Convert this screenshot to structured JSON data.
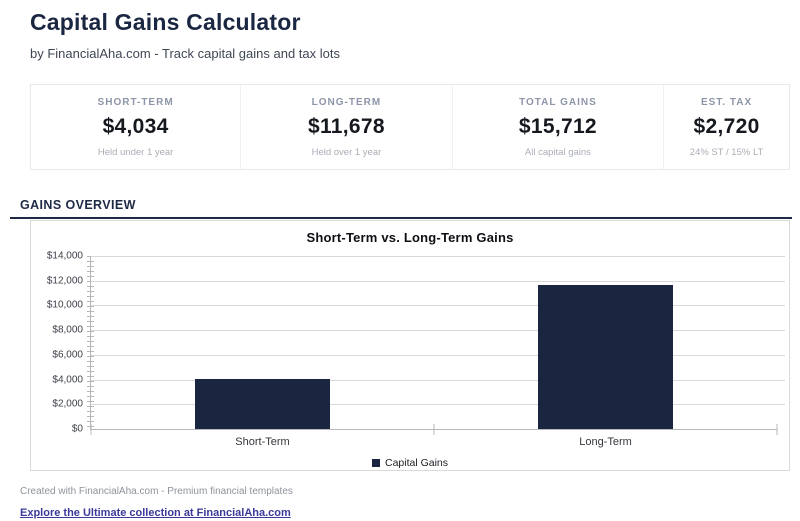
{
  "header": {
    "title": "Capital Gains Calculator",
    "subtitle": "by FinancialAha.com - Track capital gains and tax lots"
  },
  "stats": {
    "cards": [
      {
        "label": "SHORT-TERM",
        "value": "$4,034",
        "sublabel": "Held under 1 year"
      },
      {
        "label": "LONG-TERM",
        "value": "$11,678",
        "sublabel": "Held over 1 year"
      },
      {
        "label": "TOTAL GAINS",
        "value": "$15,712",
        "sublabel": "All capital gains"
      },
      {
        "label": "EST. TAX",
        "value": "$2,720",
        "sublabel": "24% ST / 15% LT"
      }
    ]
  },
  "section": {
    "heading": "GAINS OVERVIEW"
  },
  "chart_data": {
    "type": "bar",
    "title": "Short-Term vs. Long-Term Gains",
    "categories": [
      "Short-Term",
      "Long-Term"
    ],
    "series": [
      {
        "name": "Capital Gains",
        "values": [
          4034,
          11678
        ],
        "color": "#1a2540"
      }
    ],
    "xlabel": "",
    "ylabel": "",
    "ylim": [
      0,
      14000
    ],
    "ytick_interval": 2000,
    "ytick_labels": [
      "$0",
      "$2,000",
      "$4,000",
      "$6,000",
      "$8,000",
      "$10,000",
      "$12,000",
      "$14,000"
    ],
    "grid": true,
    "legend_position": "bottom"
  },
  "footer": {
    "credit": "Created with FinancialAha.com - Premium financial templates",
    "link": "Explore the Ultimate collection at FinancialAha.com"
  },
  "colors": {
    "accent_navy": "#1e2a45",
    "bar": "#1a2540",
    "link": "#3b3a9a"
  }
}
